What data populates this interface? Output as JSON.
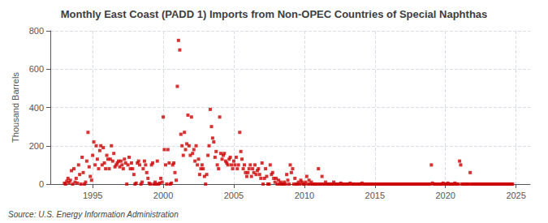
{
  "chart_data": {
    "type": "scatter",
    "title": "Monthly East Coast (PADD 1) Imports from Non-OPEC Countries of Special Naphthas",
    "ylabel": "Thousand Barrels",
    "annotation": "Source: U.S. Energy Information Administration",
    "color": "#CC0000",
    "marker": "square",
    "grid": true,
    "xlim": [
      1992.0,
      2026.0
    ],
    "ylim": [
      0,
      800
    ],
    "xticks": [
      1995,
      2000,
      2005,
      2010,
      2015,
      2020,
      2025
    ],
    "yticks": [
      0,
      200,
      400,
      600,
      800
    ],
    "x": [
      1993.0,
      1993.08,
      1993.17,
      1993.25,
      1993.33,
      1993.42,
      1993.5,
      1993.58,
      1993.67,
      1993.75,
      1993.83,
      1993.92,
      1994.0,
      1994.08,
      1994.17,
      1994.25,
      1994.33,
      1994.42,
      1994.5,
      1994.58,
      1994.67,
      1994.75,
      1994.83,
      1994.92,
      1995.0,
      1995.08,
      1995.17,
      1995.25,
      1995.33,
      1995.42,
      1995.5,
      1995.58,
      1995.67,
      1995.75,
      1995.83,
      1995.92,
      1996.0,
      1996.08,
      1996.17,
      1996.25,
      1996.33,
      1996.42,
      1996.5,
      1996.58,
      1996.67,
      1996.75,
      1996.83,
      1996.92,
      1997.0,
      1997.08,
      1997.17,
      1997.25,
      1997.33,
      1997.42,
      1997.5,
      1997.58,
      1997.67,
      1997.75,
      1997.83,
      1997.92,
      1998.0,
      1998.08,
      1998.17,
      1998.25,
      1998.33,
      1998.42,
      1998.5,
      1998.58,
      1998.67,
      1998.75,
      1998.83,
      1998.92,
      1999.0,
      1999.08,
      1999.17,
      1999.25,
      1999.33,
      1999.42,
      1999.5,
      1999.58,
      1999.67,
      1999.75,
      1999.83,
      1999.92,
      2000.0,
      2000.08,
      2000.17,
      2000.25,
      2000.33,
      2000.42,
      2000.5,
      2000.58,
      2000.67,
      2000.75,
      2000.83,
      2000.92,
      2001.0,
      2001.08,
      2001.17,
      2001.25,
      2001.33,
      2001.42,
      2001.5,
      2001.58,
      2001.67,
      2001.75,
      2001.83,
      2001.92,
      2002.0,
      2002.08,
      2002.17,
      2002.25,
      2002.33,
      2002.42,
      2002.5,
      2002.58,
      2002.67,
      2002.75,
      2002.83,
      2002.92,
      2003.0,
      2003.08,
      2003.17,
      2003.25,
      2003.33,
      2003.42,
      2003.5,
      2003.58,
      2003.67,
      2003.75,
      2003.83,
      2003.92,
      2004.0,
      2004.08,
      2004.17,
      2004.25,
      2004.33,
      2004.42,
      2004.5,
      2004.58,
      2004.67,
      2004.75,
      2004.83,
      2004.92,
      2005.0,
      2005.08,
      2005.17,
      2005.25,
      2005.33,
      2005.42,
      2005.5,
      2005.58,
      2005.67,
      2005.75,
      2005.83,
      2005.92,
      2006.0,
      2006.08,
      2006.17,
      2006.25,
      2006.33,
      2006.42,
      2006.5,
      2006.58,
      2006.67,
      2006.75,
      2006.83,
      2006.92,
      2007.0,
      2007.08,
      2007.17,
      2007.25,
      2007.33,
      2007.42,
      2007.5,
      2007.58,
      2007.67,
      2007.75,
      2007.83,
      2007.92,
      2008.0,
      2008.08,
      2008.17,
      2008.25,
      2008.33,
      2008.42,
      2008.5,
      2008.58,
      2008.67,
      2008.75,
      2008.83,
      2008.92,
      2009.0,
      2009.08,
      2009.17,
      2009.25,
      2009.33,
      2009.42,
      2009.5,
      2009.58,
      2009.67,
      2009.75,
      2009.83,
      2009.92,
      2010.0,
      2010.08,
      2010.17,
      2010.25,
      2010.33,
      2010.42,
      2010.5,
      2010.58,
      2010.67,
      2010.75,
      2010.83,
      2010.92,
      2011.0,
      2011.08,
      2011.17,
      2011.25,
      2011.33,
      2011.42,
      2011.5,
      2011.58,
      2011.67,
      2011.75,
      2011.83,
      2011.92,
      2012.0,
      2012.08,
      2012.17,
      2012.25,
      2012.33,
      2012.42,
      2012.5,
      2012.58,
      2012.67,
      2012.75,
      2012.83,
      2012.92,
      2013.0,
      2013.08,
      2013.17,
      2013.25,
      2013.33,
      2013.42,
      2013.5,
      2013.58,
      2013.67,
      2013.75,
      2013.83,
      2013.92,
      2014.0,
      2014.08,
      2014.17,
      2014.25,
      2014.33,
      2014.42,
      2014.5,
      2014.58,
      2014.67,
      2014.75,
      2014.83,
      2014.92,
      2015.0,
      2015.08,
      2015.17,
      2015.25,
      2015.33,
      2015.42,
      2015.5,
      2015.58,
      2015.67,
      2015.75,
      2015.83,
      2015.92,
      2016.0,
      2016.08,
      2016.17,
      2016.25,
      2016.33,
      2016.42,
      2016.5,
      2016.58,
      2016.67,
      2016.75,
      2016.83,
      2016.92,
      2017.0,
      2017.08,
      2017.17,
      2017.25,
      2017.33,
      2017.42,
      2017.5,
      2017.58,
      2017.67,
      2017.75,
      2017.83,
      2017.92,
      2018.0,
      2018.08,
      2018.17,
      2018.25,
      2018.33,
      2018.42,
      2018.5,
      2018.58,
      2018.67,
      2018.75,
      2018.83,
      2018.92,
      2019.0,
      2019.08,
      2019.17,
      2019.25,
      2019.33,
      2019.42,
      2019.5,
      2019.58,
      2019.67,
      2019.75,
      2019.83,
      2019.92,
      2020.0,
      2020.08,
      2020.17,
      2020.25,
      2020.33,
      2020.42,
      2020.5,
      2020.58,
      2020.67,
      2020.75,
      2020.83,
      2020.92,
      2021.0,
      2021.08,
      2021.17,
      2021.25,
      2021.33,
      2021.42,
      2021.5,
      2021.58,
      2021.67,
      2021.75,
      2021.83,
      2021.92,
      2022.0,
      2022.08,
      2022.17,
      2022.25,
      2022.33,
      2022.42,
      2022.5,
      2022.58,
      2022.67,
      2022.75,
      2022.83,
      2022.92,
      2023.0,
      2023.08,
      2023.17,
      2023.25,
      2023.33,
      2023.42,
      2023.5,
      2023.58,
      2023.67,
      2023.75,
      2023.83,
      2023.92,
      2024.0,
      2024.08,
      2024.17,
      2024.25,
      2024.33,
      2024.42,
      2024.5,
      2024.58,
      2024.67,
      2024.75
    ],
    "values": [
      5,
      0,
      15,
      30,
      8,
      20,
      70,
      0,
      80,
      10,
      30,
      5,
      100,
      50,
      0,
      140,
      60,
      0,
      10,
      120,
      270,
      90,
      40,
      20,
      150,
      220,
      100,
      200,
      130,
      80,
      175,
      200,
      100,
      190,
      110,
      80,
      150,
      130,
      80,
      130,
      200,
      120,
      160,
      90,
      100,
      110,
      120,
      90,
      120,
      100,
      80,
      130,
      110,
      0,
      100,
      140,
      80,
      110,
      80,
      50,
      0,
      5,
      110,
      120,
      100,
      0,
      10,
      80,
      120,
      100,
      60,
      30,
      5,
      0,
      100,
      110,
      0,
      10,
      0,
      120,
      0,
      5,
      30,
      10,
      350,
      180,
      100,
      0,
      180,
      110,
      0,
      5,
      100,
      110,
      60,
      20,
      510,
      750,
      700,
      260,
      200,
      150,
      270,
      180,
      210,
      360,
      200,
      150,
      350,
      160,
      180,
      120,
      200,
      100,
      130,
      50,
      80,
      100,
      80,
      40,
      0,
      50,
      150,
      200,
      390,
      300,
      240,
      220,
      140,
      170,
      100,
      80,
      350,
      160,
      130,
      150,
      160,
      120,
      110,
      100,
      130,
      140,
      100,
      80,
      120,
      100,
      140,
      80,
      100,
      270,
      170,
      130,
      80,
      100,
      60,
      40,
      60,
      80,
      100,
      40,
      80,
      60,
      100,
      50,
      70,
      80,
      50,
      30,
      110,
      0,
      30,
      80,
      40,
      0,
      0,
      100,
      50,
      60,
      30,
      10,
      30,
      0,
      20,
      0,
      10,
      0,
      0,
      10,
      0,
      50,
      20,
      0,
      100,
      60,
      80,
      0,
      30,
      0,
      0,
      10,
      0,
      20,
      10,
      0,
      0,
      10,
      40,
      0,
      20,
      0,
      10,
      0,
      0,
      0,
      0,
      0,
      80,
      0,
      0,
      40,
      0,
      0,
      10,
      0,
      0,
      0,
      0,
      0,
      0,
      10,
      0,
      0,
      0,
      0,
      0,
      5,
      0,
      0,
      0,
      0,
      0,
      0,
      0,
      5,
      0,
      0,
      0,
      0,
      0,
      0,
      0,
      0,
      0,
      5,
      0,
      0,
      0,
      0,
      0,
      0,
      0,
      0,
      0,
      0,
      0,
      0,
      0,
      0,
      0,
      0,
      0,
      0,
      0,
      0,
      0,
      0,
      0,
      0,
      0,
      0,
      0,
      0,
      0,
      0,
      0,
      0,
      0,
      0,
      0,
      0,
      0,
      0,
      0,
      0,
      0,
      0,
      0,
      0,
      0,
      0,
      0,
      0,
      0,
      0,
      0,
      0,
      0,
      0,
      0,
      0,
      0,
      0,
      100,
      5,
      0,
      0,
      0,
      0,
      0,
      0,
      0,
      0,
      5,
      0,
      0,
      0,
      5,
      0,
      0,
      0,
      0,
      0,
      5,
      0,
      0,
      0,
      120,
      100,
      0,
      0,
      0,
      0,
      0,
      0,
      0,
      60,
      0,
      0,
      0,
      0,
      0,
      0,
      0,
      0,
      0,
      0,
      0,
      0,
      0,
      0,
      0,
      0,
      0,
      0,
      0,
      0,
      0,
      0,
      0,
      0,
      0,
      0,
      0,
      0,
      0,
      0,
      0,
      0,
      0,
      0,
      0,
      0
    ]
  }
}
